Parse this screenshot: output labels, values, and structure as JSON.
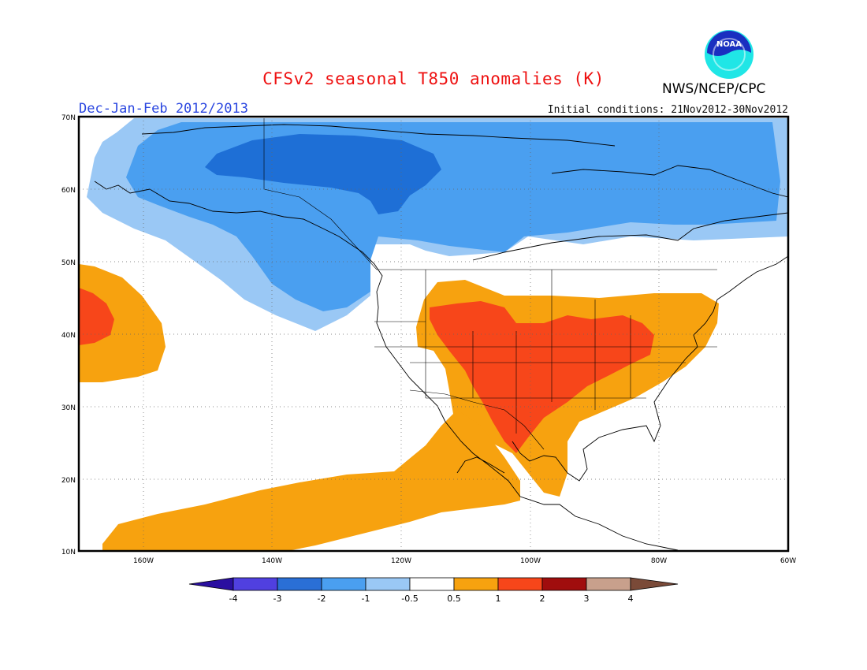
{
  "header": {
    "title": "CFSv2 seasonal T850 anomalies (K)",
    "agency": "NWS/NCEP/CPC",
    "season": "Dec-Jan-Feb 2012/2013",
    "initial_conditions": "Initial conditions: 21Nov2012-30Nov2012",
    "logo_text": "NOAA"
  },
  "map": {
    "projection": "equirectangular",
    "lon_range": [
      -171,
      -60
    ],
    "lat_range": [
      10,
      70
    ],
    "lat_ticks": [
      "70N",
      "60N",
      "50N",
      "40N",
      "30N",
      "20N",
      "10N"
    ],
    "lon_ticks": [
      "160W",
      "140W",
      "120W",
      "100W",
      "80W",
      "60W"
    ],
    "grid": "dotted",
    "anomaly_regions": [
      {
        "name": "Canada-Alaska cold anomaly",
        "category": "-1 to -0.5",
        "color": "#9ac8f5"
      },
      {
        "name": "Northern Canada cold anomaly",
        "category": "-2 to -1",
        "color": "#4a9ff0"
      },
      {
        "name": "Yukon-Northwest Territories cold core",
        "category": "-3 to -2",
        "color": "#1e6fd6"
      },
      {
        "name": "Central North Pacific warm anomaly",
        "category": "0.5 to 1",
        "color": "#f7a20f"
      },
      {
        "name": "Central North Pacific warm core",
        "category": "1 to 2",
        "color": "#f7461a"
      },
      {
        "name": "United States-Mexico warm anomaly",
        "category": "0.5 to 1",
        "color": "#f7a20f"
      },
      {
        "name": "Southern Plains-Midwest warm core",
        "category": "1 to 2",
        "color": "#f7461a"
      },
      {
        "name": "Tropical Pacific-Mexico warm band",
        "category": "0.5 to 1",
        "color": "#f7a20f"
      }
    ]
  },
  "colorbar": {
    "colors": [
      "#2a0fa0",
      "#5040e0",
      "#2a6fd6",
      "#4a9ff0",
      "#9ac8f5",
      "#ffffff",
      "#f7a20f",
      "#f7461a",
      "#a00d0d",
      "#c8a08c",
      "#7a4a38"
    ],
    "labels": [
      "-4",
      "-3",
      "-2",
      "-1",
      "-0.5",
      "0.5",
      "1",
      "2",
      "3",
      "4"
    ]
  }
}
